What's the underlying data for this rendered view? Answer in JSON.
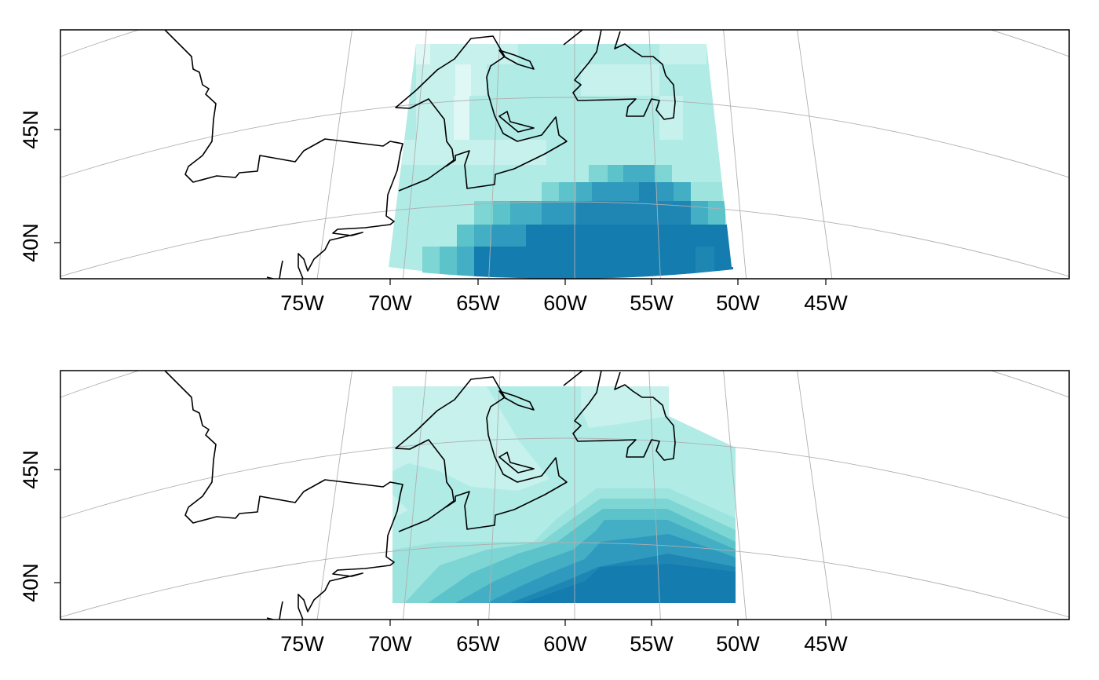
{
  "panels": [
    {
      "id": "top",
      "style": "gridded",
      "lon_tick_labels": [
        "75W",
        "70W",
        "65W",
        "60W",
        "55W",
        "50W",
        "45W"
      ],
      "lat_tick_labels": [
        "45N",
        "40N"
      ]
    },
    {
      "id": "bottom",
      "style": "contoured",
      "lon_tick_labels": [
        "75W",
        "70W",
        "65W",
        "60W",
        "55W",
        "50W",
        "45W"
      ],
      "lat_tick_labels": [
        "45N",
        "40N"
      ]
    }
  ],
  "map": {
    "region": "Northwest Atlantic / Gulf of Maine, Nova Scotia, Newfoundland",
    "longitudes": [
      -75,
      -70,
      -65,
      -60,
      -55,
      -50,
      -45
    ],
    "latitudes": [
      40,
      45
    ],
    "field_extent": {
      "lon": [
        -70,
        -50
      ],
      "lat": [
        39,
        48.5
      ]
    },
    "graticule": "on"
  },
  "colors": {
    "palette": [
      "#dff7f5",
      "#c6f1ec",
      "#b0ebe6",
      "#9de3de",
      "#7dd6d4",
      "#5cc3cb",
      "#43aec4",
      "#2f9abd",
      "#1f86b4",
      "#147caf"
    ],
    "coastline": "#000000",
    "graticule": "#b0b0b0"
  }
}
